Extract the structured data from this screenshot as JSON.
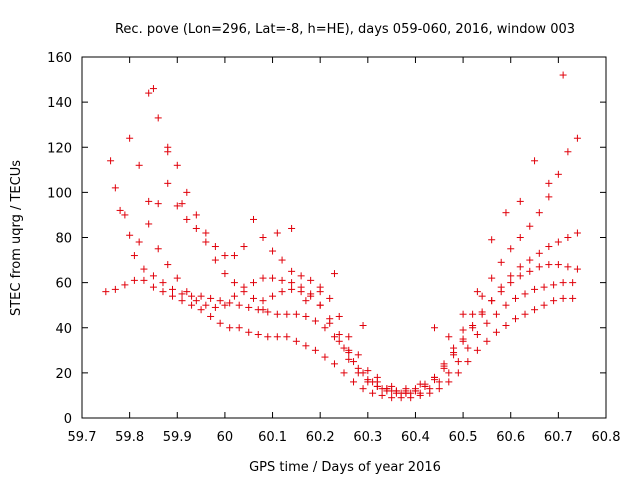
{
  "chart_data": {
    "type": "scatter",
    "title": "Rec. pove (Lon=296, Lat=-8, h=HE), days 059-060, 2016, window 003",
    "xlabel": "GPS time / Days of year 2016",
    "ylabel": "STEC from uqrg / TECUs",
    "xlim": [
      59.7,
      60.8
    ],
    "ylim": [
      0,
      160
    ],
    "xticks": [
      "59.7",
      "59.8",
      "59.9",
      "60",
      "60.1",
      "60.2",
      "60.3",
      "60.4",
      "60.5",
      "60.6",
      "60.7",
      "60.8"
    ],
    "yticks": [
      "0",
      "20",
      "40",
      "60",
      "80",
      "100",
      "120",
      "140",
      "160"
    ],
    "grid": false,
    "legend": "none",
    "marker": "plus",
    "color": "#e0000a",
    "series": [
      {
        "x": [
          59.75,
          59.77,
          59.79,
          59.81,
          59.83,
          59.85,
          59.87,
          59.89,
          59.91,
          59.93,
          59.95,
          59.97,
          59.99,
          60.01,
          60.03,
          60.05,
          60.07,
          60.09,
          60.11,
          60.13,
          60.15,
          60.17,
          60.19,
          60.21,
          60.23,
          60.25,
          60.27,
          60.29,
          60.31,
          60.33,
          60.35,
          60.37,
          60.39,
          60.41,
          60.43,
          60.45,
          60.47,
          60.49,
          60.51,
          60.53,
          60.55,
          60.57,
          60.59,
          60.61,
          60.63,
          60.65,
          60.67,
          60.69,
          60.71,
          60.73
        ],
        "y": [
          56,
          57,
          59,
          61,
          61,
          58,
          56,
          54,
          52,
          50,
          48,
          45,
          42,
          40,
          40,
          38,
          37,
          36,
          36,
          36,
          34,
          32,
          30,
          27,
          24,
          20,
          16,
          13,
          11,
          10,
          9,
          9,
          9,
          10,
          11,
          13,
          16,
          20,
          25,
          30,
          34,
          38,
          41,
          44,
          46,
          48,
          50,
          52,
          53,
          53
        ]
      },
      {
        "x": [
          59.77,
          59.79,
          59.81,
          59.83,
          59.85,
          59.87,
          59.89,
          59.91,
          59.93,
          59.95,
          59.97,
          59.99,
          60.01,
          60.03,
          60.05,
          60.07,
          60.09,
          60.11,
          60.13,
          60.15,
          60.17,
          60.19,
          60.21,
          60.23,
          60.25,
          60.27,
          60.29,
          60.31,
          60.33,
          60.35,
          60.37,
          60.39,
          60.41,
          60.43,
          60.45,
          60.47,
          60.49,
          60.51,
          60.53,
          60.55,
          60.57,
          60.59,
          60.61,
          60.63,
          60.65,
          60.67,
          60.69,
          60.71,
          60.73
        ],
        "y": [
          102,
          90,
          72,
          66,
          63,
          60,
          57,
          55,
          54,
          54,
          53,
          52,
          51,
          50,
          49,
          48,
          47,
          46,
          46,
          46,
          45,
          43,
          40,
          36,
          31,
          25,
          20,
          16,
          13,
          12,
          11,
          11,
          11,
          13,
          16,
          20,
          25,
          31,
          37,
          42,
          46,
          50,
          53,
          55,
          57,
          58,
          59,
          60,
          60
        ]
      },
      {
        "x": [
          59.76,
          59.78,
          59.8,
          59.82,
          59.84,
          59.86,
          59.88,
          59.9,
          59.92,
          59.94,
          59.96,
          59.98,
          60.0,
          60.02,
          60.04,
          60.06,
          60.08,
          60.1,
          60.12,
          60.14,
          60.16,
          60.18,
          60.2,
          60.22,
          60.24,
          60.26,
          60.28,
          60.3,
          60.32,
          60.34,
          60.36,
          60.38,
          60.4,
          60.42,
          60.44,
          60.46,
          60.48,
          60.5,
          60.52,
          60.54,
          60.56,
          60.58,
          60.6,
          60.62,
          60.64,
          60.66,
          60.68,
          60.7,
          60.72,
          60.74
        ],
        "y": [
          114,
          92,
          81,
          78,
          86,
          75,
          68,
          62,
          56,
          52,
          50,
          49,
          50,
          54,
          58,
          60,
          62,
          62,
          61,
          60,
          58,
          55,
          50,
          42,
          34,
          26,
          20,
          16,
          14,
          13,
          12,
          12,
          13,
          15,
          18,
          23,
          29,
          35,
          41,
          47,
          52,
          56,
          60,
          63,
          65,
          67,
          68,
          68,
          67,
          66
        ]
      },
      {
        "x": [
          59.8,
          59.82,
          59.84,
          59.86,
          59.88,
          59.9,
          59.92,
          59.94,
          59.96,
          59.98,
          60.0,
          60.02,
          60.04,
          60.06,
          60.08,
          60.1,
          60.12,
          60.14,
          60.16,
          60.18,
          60.2,
          60.22,
          60.24,
          60.26,
          60.28,
          60.3,
          60.32,
          60.34,
          60.36,
          60.38,
          60.4,
          60.42,
          60.44,
          60.46,
          60.48,
          60.5,
          60.52,
          60.54,
          60.56,
          60.58,
          60.6,
          60.62,
          60.64,
          60.66,
          60.68,
          60.7,
          60.72,
          60.74
        ],
        "y": [
          124,
          112,
          96,
          95,
          104,
          94,
          88,
          84,
          78,
          70,
          64,
          60,
          56,
          53,
          52,
          54,
          56,
          57,
          56,
          54,
          50,
          44,
          37,
          29,
          22,
          17,
          14,
          12,
          11,
          11,
          12,
          14,
          17,
          22,
          28,
          34,
          40,
          46,
          52,
          58,
          63,
          67,
          70,
          73,
          76,
          78,
          80,
          82
        ]
      },
      {
        "x": [
          59.84,
          59.86,
          59.88,
          59.9,
          59.92,
          59.94,
          59.96,
          59.98,
          60.0,
          60.02,
          60.04,
          60.06,
          60.08,
          60.1,
          60.12,
          60.14,
          60.16,
          60.18,
          60.2,
          60.22,
          60.24,
          60.26,
          60.28,
          60.3,
          60.32,
          60.34,
          60.36,
          60.38,
          60.4,
          60.42,
          60.44,
          60.46,
          60.48,
          60.5,
          60.52,
          60.54,
          60.56,
          60.58,
          60.6,
          60.62,
          60.64,
          60.66,
          60.68,
          60.7,
          60.72,
          60.74
        ],
        "y": [
          144,
          133,
          120,
          112,
          100,
          90,
          82,
          76,
          72,
          72,
          76,
          88,
          80,
          74,
          70,
          65,
          63,
          61,
          58,
          53,
          45,
          36,
          28,
          21,
          16,
          13,
          12,
          11,
          12,
          14,
          18,
          24,
          31,
          39,
          46,
          54,
          62,
          69,
          75,
          80,
          85,
          91,
          98,
          108,
          118,
          124
        ]
      },
      {
        "x": [
          59.85,
          59.88,
          59.91,
          60.08,
          60.11,
          60.14,
          60.17,
          60.2,
          60.23,
          60.26,
          60.29,
          60.32,
          60.35,
          60.38,
          60.41,
          60.44,
          60.47,
          60.5,
          60.53,
          60.56,
          60.59,
          60.62,
          60.65,
          60.68,
          60.71
        ],
        "y": [
          146,
          118,
          95,
          48,
          82,
          84,
          52,
          56,
          64,
          30,
          41,
          18,
          14,
          13,
          15,
          40,
          36,
          46,
          56,
          79,
          91,
          96,
          114,
          104,
          152
        ]
      }
    ]
  }
}
